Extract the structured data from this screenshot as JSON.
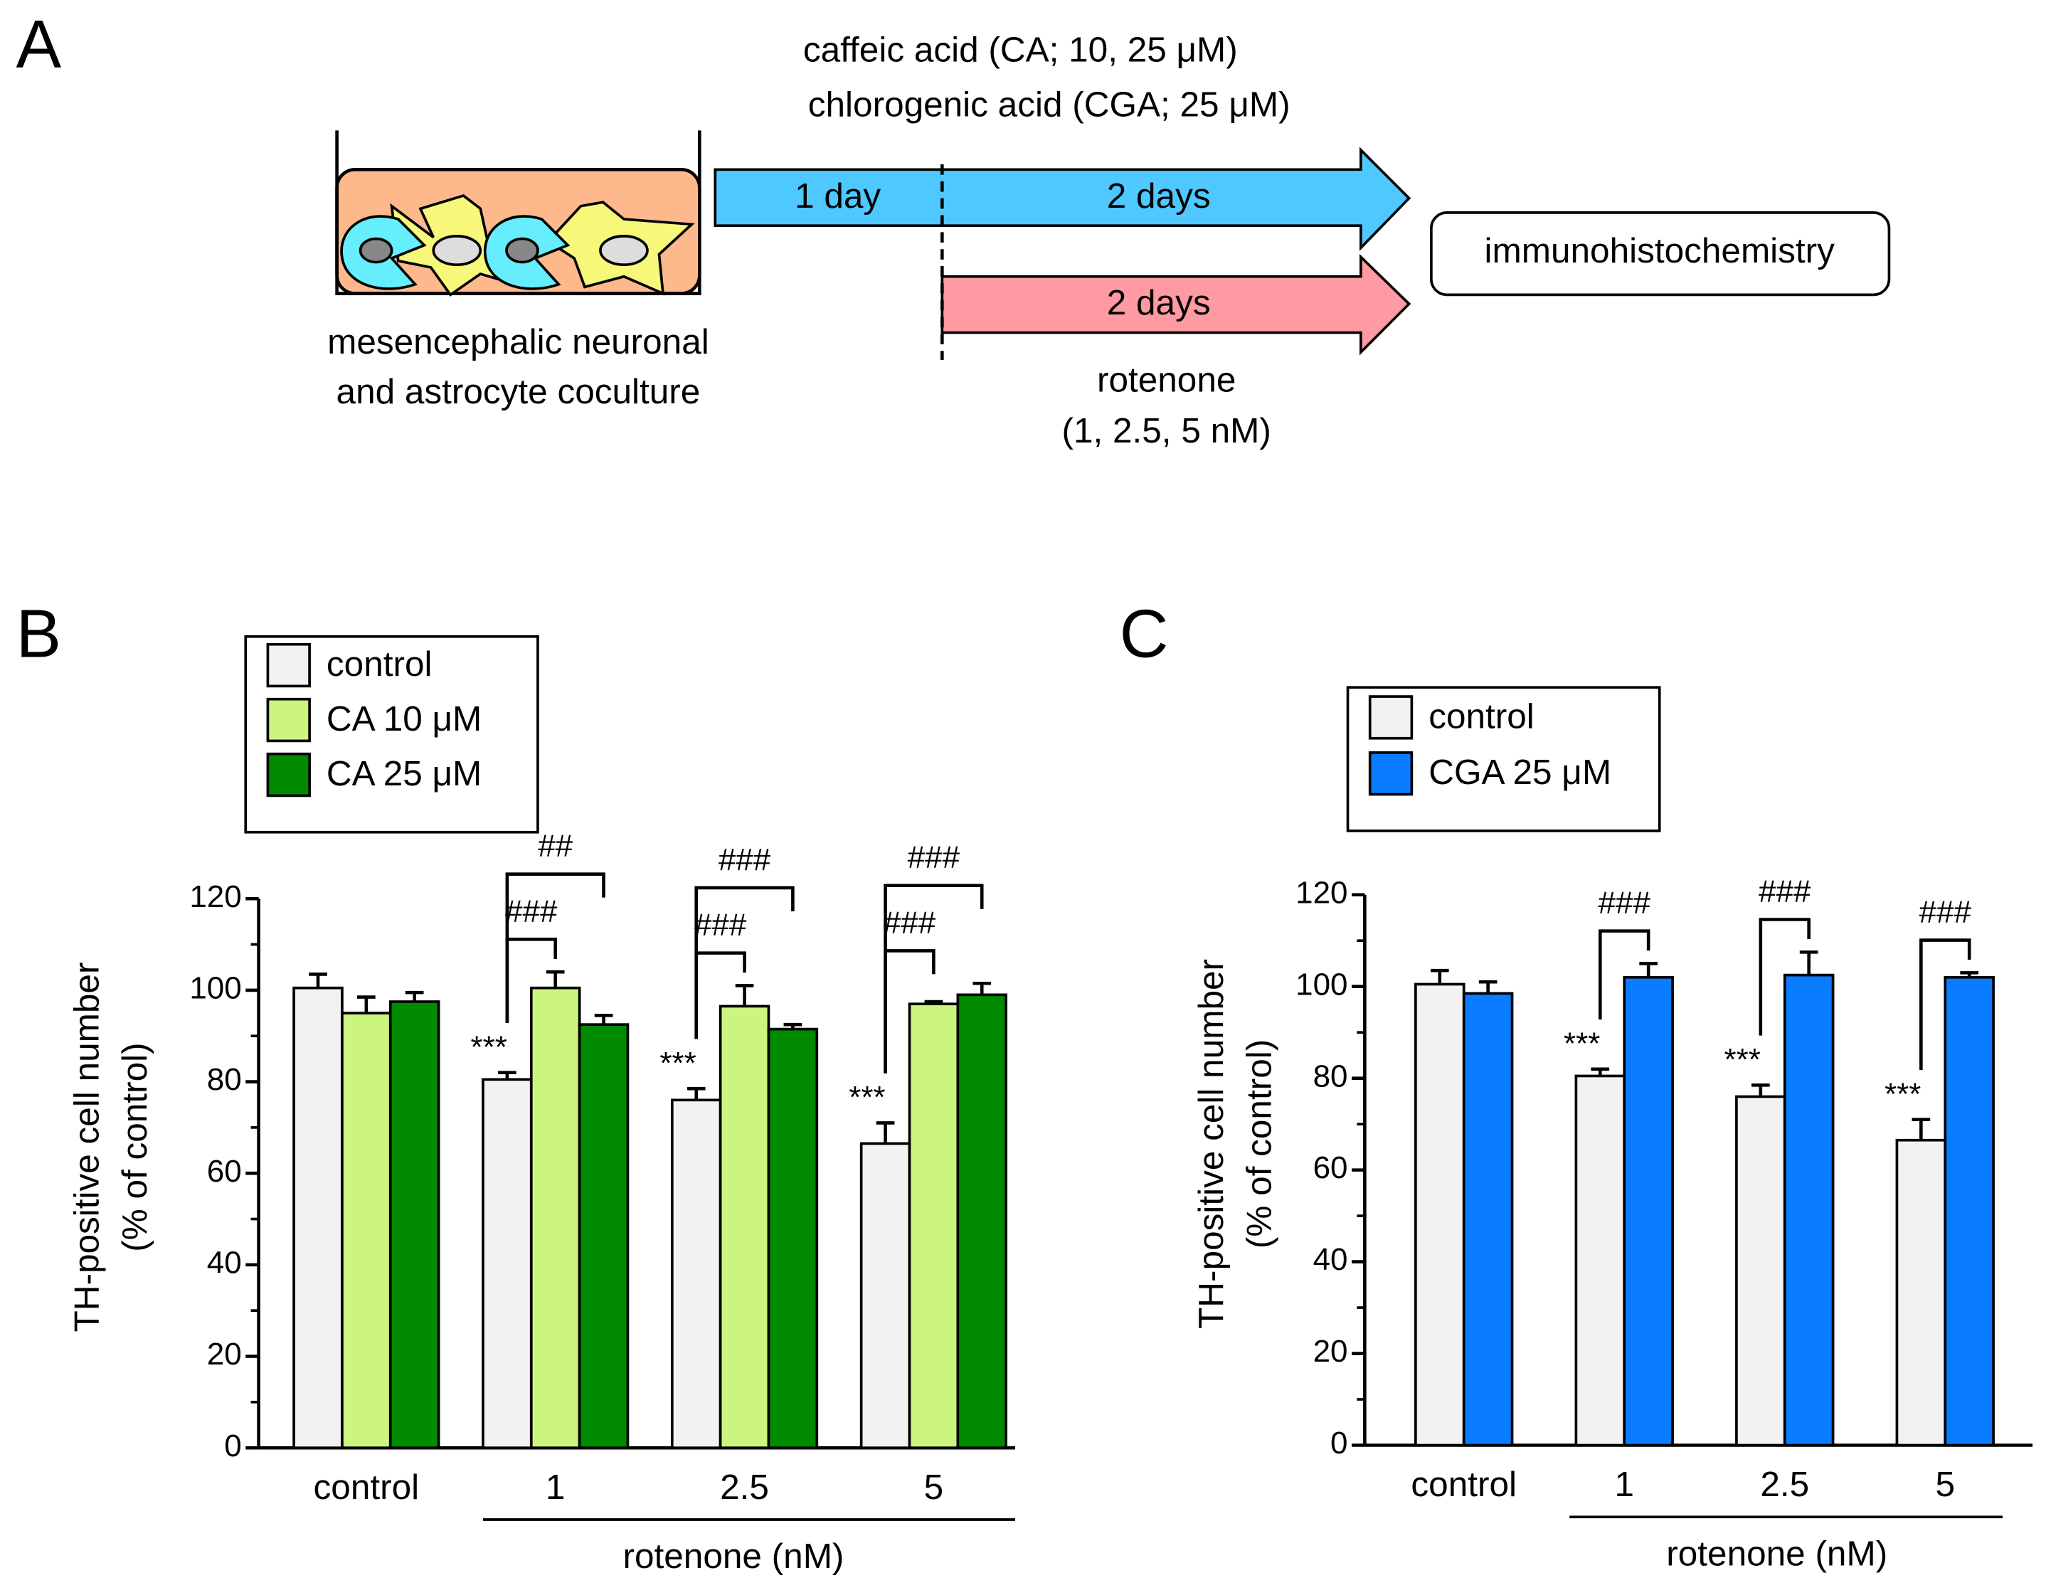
{
  "diagram": {
    "panel_label": "A",
    "treatment_lines": [
      "caffeic acid (CA; 10, 25 μM)",
      "chlorogenic acid (CGA; 25 μM)"
    ],
    "arrow1_labels": [
      "1 day",
      "2 days"
    ],
    "arrow2_label": "2 days",
    "endpoint": "immunohistochemistry",
    "culture_lines": [
      "mesencephalic neuronal",
      "and astrocyte coculture"
    ],
    "rotenone_lines": [
      "rotenone",
      "(1, 2.5, 5 nM)"
    ]
  },
  "chart_data": [
    {
      "type": "bar",
      "panel_label": "B",
      "categories": [
        "control",
        "1",
        "2.5",
        "5"
      ],
      "xlabel": "rotenone (nM)",
      "ylabel": [
        "TH-positive cell number",
        "(% of control)"
      ],
      "ylim": [
        0,
        120
      ],
      "yticks": [
        0,
        20,
        40,
        60,
        80,
        100,
        120
      ],
      "minor_yticks": [
        10,
        30,
        50,
        70,
        90,
        110
      ],
      "series": [
        {
          "name": "control",
          "color": "#f2f2f2",
          "values": [
            100.5,
            80.5,
            76,
            66.5
          ],
          "errors": [
            3,
            1.5,
            2.5,
            4.5
          ],
          "annotations": [
            null,
            "***",
            "***",
            "***"
          ]
        },
        {
          "name": "CA 10 μM",
          "color": "#ccf57f",
          "values": [
            95,
            100.5,
            96.5,
            97
          ],
          "errors": [
            3.5,
            3.5,
            4.5,
            0.5
          ],
          "brackets": [
            null,
            "###",
            "###",
            "###"
          ]
        },
        {
          "name": "CA 25 μM",
          "color": "#008a00",
          "values": [
            97.5,
            92.5,
            91.5,
            99
          ],
          "errors": [
            2,
            2,
            1,
            2.5
          ],
          "brackets": [
            null,
            "##",
            "###",
            "###"
          ]
        }
      ]
    },
    {
      "type": "bar",
      "panel_label": "C",
      "categories": [
        "control",
        "1",
        "2.5",
        "5"
      ],
      "xlabel": "rotenone (nM)",
      "ylabel": [
        "TH-positive cell number",
        "(% of control)"
      ],
      "ylim": [
        0,
        120
      ],
      "yticks": [
        0,
        20,
        40,
        60,
        80,
        100,
        120
      ],
      "minor_yticks": [
        10,
        30,
        50,
        70,
        90,
        110
      ],
      "series": [
        {
          "name": "control",
          "color": "#f2f2f2",
          "values": [
            100.5,
            80.5,
            76,
            66.5
          ],
          "errors": [
            3,
            1.5,
            2.5,
            4.5
          ],
          "annotations": [
            null,
            "***",
            "***",
            "***"
          ]
        },
        {
          "name": "CGA 25 μM",
          "color": "#0a7cff",
          "values": [
            98.5,
            102,
            102.5,
            102
          ],
          "errors": [
            2.5,
            3,
            5,
            1
          ],
          "brackets": [
            null,
            "###",
            "###",
            "###"
          ]
        }
      ]
    }
  ]
}
